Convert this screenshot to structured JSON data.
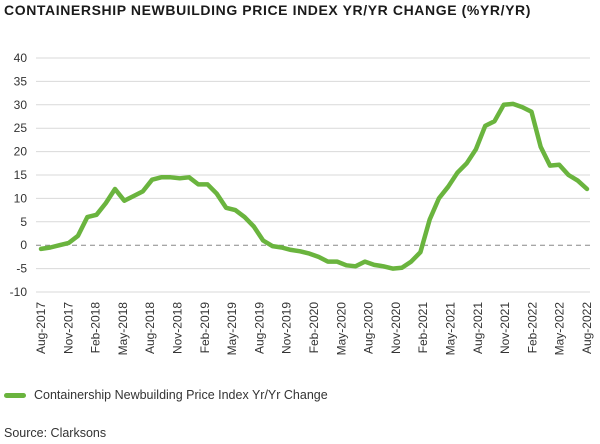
{
  "chart_data": {
    "type": "line",
    "title": "CONTAINERSHIP NEWBUILDING PRICE INDEX YR/YR CHANGE (%YR/YR)",
    "xlabel": "",
    "ylabel": "",
    "ylim": [
      -10,
      40
    ],
    "yticks": [
      40,
      35,
      30,
      25,
      20,
      15,
      10,
      5,
      0,
      -5,
      -10
    ],
    "xtick_labels": [
      "Aug-2017",
      "Nov-2017",
      "Feb-2018",
      "May-2018",
      "Aug-2018",
      "Nov-2018",
      "Feb-2019",
      "May-2019",
      "Aug-2019",
      "Nov-2019",
      "Feb-2020",
      "May-2020",
      "Aug-2020",
      "Nov-2020",
      "Feb-2021",
      "May-2021",
      "Aug-2021",
      "Nov-2021",
      "Feb-2022",
      "May-2022",
      "Aug-2022"
    ],
    "zero_line": "dashed",
    "grid": "horizontal",
    "series": [
      {
        "name": "Containership Newbuilding Price Index Yr/Yr Change",
        "color": "#6ab43e",
        "values": [
          -0.8,
          -0.5,
          0,
          0.5,
          2,
          6,
          6.5,
          9,
          12,
          9.5,
          10.5,
          11.5,
          14,
          14.5,
          14.5,
          14.3,
          14.5,
          13,
          13,
          11,
          8,
          7.5,
          6,
          4,
          1,
          -0.2,
          -0.5,
          -1,
          -1.3,
          -1.8,
          -2.5,
          -3.5,
          -3.5,
          -4.3,
          -4.5,
          -3.5,
          -4.2,
          -4.5,
          -5,
          -4.8,
          -3.5,
          -1.5,
          5.5,
          10,
          12.5,
          15.5,
          17.5,
          20.5,
          25.5,
          26.5,
          30,
          30.2,
          29.5,
          28.5,
          21,
          17,
          17.2,
          15,
          13.8,
          12
        ]
      }
    ]
  },
  "legend": {
    "label": "Containership Newbuilding Price Index Yr/Yr Change"
  },
  "source": "Source: Clarksons"
}
